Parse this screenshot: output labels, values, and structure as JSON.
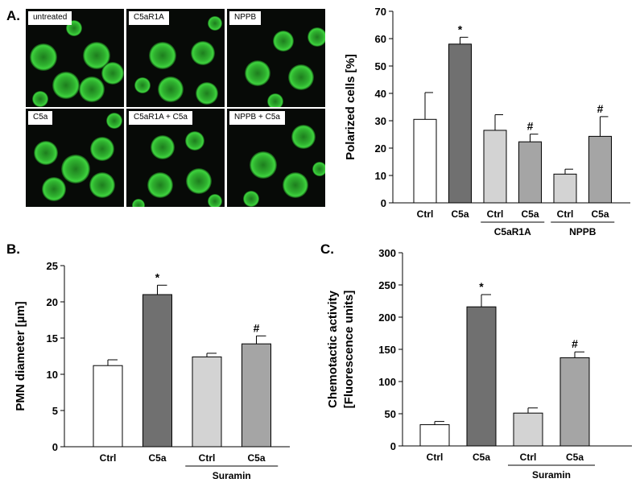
{
  "panels": {
    "a": "A.",
    "b": "B.",
    "c": "C."
  },
  "micrographs": [
    {
      "label": "untreated"
    },
    {
      "label": "C5aR1A"
    },
    {
      "label": "NPPB"
    },
    {
      "label": "C5a"
    },
    {
      "label": "C5aR1A + C5a"
    },
    {
      "label": "NPPB + C5a"
    }
  ],
  "chart_data": [
    {
      "type": "bar",
      "panel": "A.",
      "ylabel": "Polarized cells [%]",
      "ylim": [
        0,
        70
      ],
      "yticks": [
        0,
        10,
        20,
        30,
        40,
        50,
        60,
        70
      ],
      "categories": [
        "Ctrl",
        "C5a",
        "Ctrl",
        "C5a",
        "Ctrl",
        "C5a"
      ],
      "values": [
        30.5,
        58,
        26.5,
        22.3,
        10.5,
        24.3
      ],
      "errors": [
        9.8,
        2.5,
        5.7,
        2.8,
        1.8,
        7.2
      ],
      "annotations": [
        "",
        "*",
        "",
        "#",
        "",
        "#"
      ],
      "colors": [
        "#ffffff",
        "#707070",
        "#d3d3d3",
        "#a5a5a5",
        "#d3d3d3",
        "#a5a5a5"
      ],
      "groups": [
        {
          "label": "C5aR1A",
          "from": 2,
          "to": 3
        },
        {
          "label": "NPPB",
          "from": 4,
          "to": 5
        }
      ]
    },
    {
      "type": "bar",
      "panel": "B.",
      "ylabel": "PMN diameter [µm]",
      "ylim": [
        0,
        25
      ],
      "yticks": [
        0,
        5,
        10,
        15,
        20,
        25
      ],
      "categories": [
        "Ctrl",
        "C5a",
        "Ctrl",
        "C5a"
      ],
      "values": [
        11.2,
        21,
        12.4,
        14.2
      ],
      "errors": [
        0.8,
        1.3,
        0.5,
        1.1
      ],
      "annotations": [
        "",
        "*",
        "",
        "#"
      ],
      "colors": [
        "#ffffff",
        "#707070",
        "#d3d3d3",
        "#a5a5a5"
      ],
      "groups": [
        {
          "label": "Suramin",
          "from": 2,
          "to": 3
        }
      ]
    },
    {
      "type": "bar",
      "panel": "C.",
      "ylabel": [
        "Chemotactic activity",
        "[Fluorescence units]"
      ],
      "ylim": [
        0,
        300
      ],
      "yticks": [
        0,
        50,
        100,
        150,
        200,
        250,
        300
      ],
      "categories": [
        "Ctrl",
        "C5a",
        "Ctrl",
        "C5a"
      ],
      "values": [
        33,
        216,
        51,
        137
      ],
      "errors": [
        5,
        19,
        8,
        9
      ],
      "annotations": [
        "",
        "*",
        "",
        "#"
      ],
      "colors": [
        "#ffffff",
        "#707070",
        "#d3d3d3",
        "#a5a5a5"
      ],
      "groups": [
        {
          "label": "Suramin",
          "from": 2,
          "to": 3
        }
      ]
    }
  ]
}
